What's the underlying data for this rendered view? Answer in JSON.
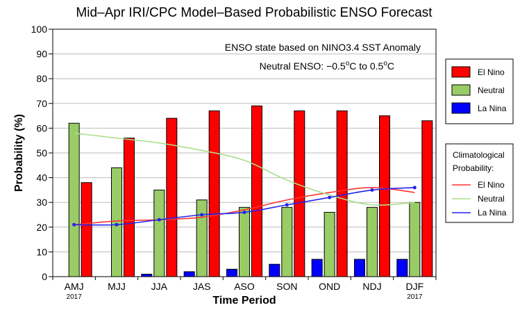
{
  "chart_data": {
    "type": "bar",
    "title": "Mid–Apr IRI/CPC Model–Based Probabilistic ENSO Forecast",
    "xlabel": "Time Period",
    "ylabel": "Probability (%)",
    "ylim": [
      0,
      100
    ],
    "yticks": [
      "0",
      "10",
      "20",
      "30",
      "40",
      "50",
      "60",
      "70",
      "80",
      "90",
      "100"
    ],
    "grid": true,
    "categories": [
      "AMJ",
      "MJJ",
      "JJA",
      "JAS",
      "ASO",
      "SON",
      "OND",
      "NDJ",
      "DJF"
    ],
    "sublabels": [
      {
        "category": "AMJ",
        "text": "2017"
      },
      {
        "category": "DJF",
        "text": "2017"
      }
    ],
    "annotations": {
      "line1": "ENSO state based on NINO3.4 SST Anomaly",
      "line2_prefix": "Neutral ENSO: −0.5",
      "line2_mid": "C to 0.5",
      "degree": "o",
      "unit": "C"
    },
    "series": [
      {
        "name": "La Nina",
        "color": "#0000ff",
        "values": [
          0,
          0,
          1,
          2,
          3,
          5,
          7,
          7,
          7
        ]
      },
      {
        "name": "Neutral",
        "color": "#99cc66",
        "values": [
          62,
          44,
          35,
          31,
          28,
          28,
          26,
          28,
          30
        ]
      },
      {
        "name": "El Nino",
        "color": "#ff0000",
        "values": [
          38,
          56,
          64,
          67,
          69,
          67,
          67,
          65,
          63
        ]
      }
    ],
    "legend": {
      "placement": "right",
      "items": [
        {
          "label": "El Nino",
          "color": "#ff0000"
        },
        {
          "label": "Neutral",
          "color": "#99cc66"
        },
        {
          "label": "La Nina",
          "color": "#0000ff"
        }
      ]
    },
    "climatology": {
      "title_line1": "Climatological",
      "title_line2": "Probability:",
      "series": [
        {
          "name": "El Nino",
          "color": "#ff3333",
          "values": [
            21,
            22.5,
            23,
            24,
            27,
            31,
            34,
            36,
            34
          ]
        },
        {
          "name": "Neutral",
          "color": "#aadd88",
          "values": [
            58,
            56,
            54,
            51,
            47,
            39,
            33,
            29,
            30
          ]
        },
        {
          "name": "La Nina",
          "color": "#2222ee",
          "values": [
            21,
            21,
            23,
            25,
            26,
            29,
            32,
            35,
            36
          ]
        }
      ]
    }
  }
}
